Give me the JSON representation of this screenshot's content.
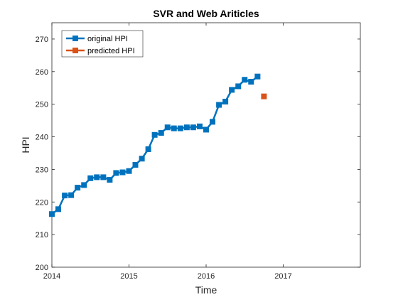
{
  "chart_data": {
    "type": "line",
    "title": "SVR and Web Ariticles",
    "xlabel": "Time",
    "ylabel": "HPI",
    "xlim": [
      2014,
      2018
    ],
    "ylim": [
      200,
      275
    ],
    "xticks": [
      2014,
      2015,
      2016,
      2017
    ],
    "yticks": [
      200,
      210,
      220,
      230,
      240,
      250,
      260,
      270
    ],
    "grid": false,
    "legend_position": "top-left",
    "series": [
      {
        "name": "original HPI",
        "color": "#0072BD",
        "marker": "square",
        "line": true,
        "x": [
          2014.0,
          2014.083,
          2014.167,
          2014.25,
          2014.333,
          2014.417,
          2014.5,
          2014.583,
          2014.667,
          2014.75,
          2014.833,
          2014.917,
          2015.0,
          2015.083,
          2015.167,
          2015.25,
          2015.333,
          2015.417,
          2015.5,
          2015.583,
          2015.667,
          2015.75,
          2015.833,
          2015.917,
          2016.0,
          2016.083,
          2016.167,
          2016.25,
          2016.333,
          2016.417,
          2016.5,
          2016.583,
          2016.667
        ],
        "y": [
          216.3,
          217.8,
          222.0,
          222.1,
          224.4,
          225.2,
          227.3,
          227.6,
          227.6,
          226.8,
          228.9,
          229.1,
          229.5,
          231.4,
          233.3,
          236.2,
          240.6,
          241.2,
          242.9,
          242.6,
          242.6,
          242.9,
          242.9,
          243.2,
          242.2,
          244.6,
          249.8,
          250.8,
          254.4,
          255.5,
          257.5,
          256.9,
          258.5
        ]
      },
      {
        "name": "predicted HPI",
        "color": "#D95319",
        "marker": "square",
        "line": false,
        "x": [
          2016.75
        ],
        "y": [
          252.4
        ]
      }
    ]
  }
}
